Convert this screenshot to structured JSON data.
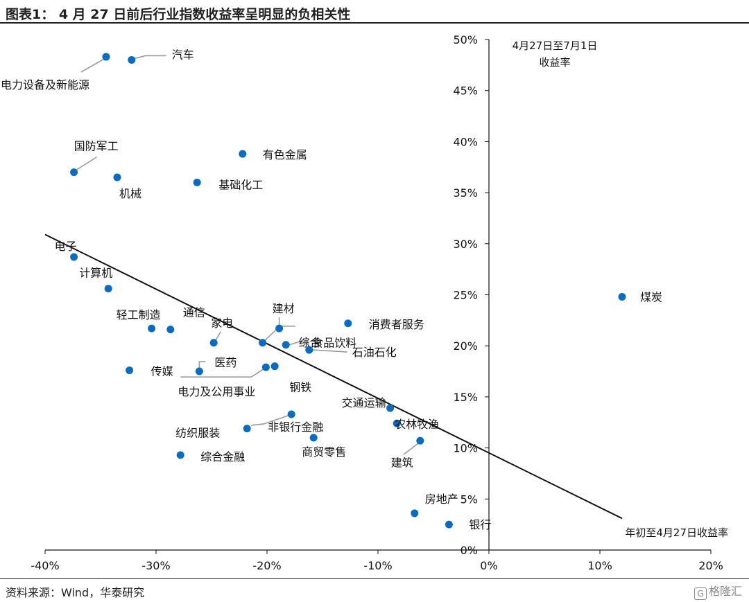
{
  "title": "图表1： 4 月 27 日前后行业指数收益率呈明显的负相关性",
  "source": "资料来源：Wind，华泰研究",
  "watermark": {
    "badge": "G",
    "text": "格隆汇"
  },
  "chart_data": {
    "type": "scatter",
    "title": "4月27日前后行业指数收益率呈明显的负相关性",
    "xlabel": "年初至4月27日收益率",
    "ylabel": [
      "4月27日至7月1日",
      "收益率"
    ],
    "xlim": [
      -0.4,
      0.2
    ],
    "ylim": [
      0.0,
      0.5
    ],
    "xticks": [
      -0.4,
      -0.3,
      -0.2,
      -0.1,
      0.0,
      0.1,
      0.2
    ],
    "xtick_labels": [
      "-40%",
      "-30%",
      "-20%",
      "-10%",
      "0%",
      "10%",
      "20%"
    ],
    "yticks": [
      0.0,
      0.05,
      0.1,
      0.15,
      0.2,
      0.25,
      0.3,
      0.35,
      0.4,
      0.45,
      0.5
    ],
    "ytick_labels": [
      "0%",
      "5%",
      "10%",
      "15%",
      "20%",
      "25%",
      "30%",
      "35%",
      "40%",
      "45%",
      "50%"
    ],
    "point_color": "#0a6cc1",
    "trendline": {
      "x": [
        -0.4,
        0.12
      ],
      "y": [
        0.309,
        0.031
      ]
    },
    "points": [
      {
        "name": "电力设备及新能源",
        "x": -0.345,
        "y": 0.483
      },
      {
        "name": "汽车",
        "x": -0.322,
        "y": 0.48
      },
      {
        "name": "国防军工",
        "x": -0.374,
        "y": 0.37
      },
      {
        "name": "机械",
        "x": -0.335,
        "y": 0.365
      },
      {
        "name": "基础化工",
        "x": -0.263,
        "y": 0.36
      },
      {
        "name": "有色金属",
        "x": -0.222,
        "y": 0.388
      },
      {
        "name": "电子",
        "x": -0.374,
        "y": 0.287
      },
      {
        "name": "计算机",
        "x": -0.343,
        "y": 0.256
      },
      {
        "name": "轻工制造",
        "x": -0.304,
        "y": 0.217
      },
      {
        "name": "通信",
        "x": -0.287,
        "y": 0.216
      },
      {
        "name": "传媒",
        "x": -0.324,
        "y": 0.176
      },
      {
        "name": "医药",
        "x": -0.261,
        "y": 0.175
      },
      {
        "name": "家电",
        "x": -0.248,
        "y": 0.203
      },
      {
        "name": "建材",
        "x": -0.189,
        "y": 0.217
      },
      {
        "name": "综合",
        "x": -0.204,
        "y": 0.203
      },
      {
        "name": "食品饮料",
        "x": -0.183,
        "y": 0.201
      },
      {
        "name": "石油石化",
        "x": -0.162,
        "y": 0.196
      },
      {
        "name": "电力及公用事业",
        "x": -0.201,
        "y": 0.179
      },
      {
        "name": "钢铁",
        "x": -0.193,
        "y": 0.18
      },
      {
        "name": "消费者服务",
        "x": -0.127,
        "y": 0.222
      },
      {
        "name": "交通运输",
        "x": -0.089,
        "y": 0.139
      },
      {
        "name": "农林牧渔",
        "x": -0.083,
        "y": 0.124
      },
      {
        "name": "纺织服装",
        "x": -0.218,
        "y": 0.119
      },
      {
        "name": "非银行金融",
        "x": -0.178,
        "y": 0.133
      },
      {
        "name": "商贸零售",
        "x": -0.158,
        "y": 0.11
      },
      {
        "name": "综合金融",
        "x": -0.278,
        "y": 0.093
      },
      {
        "name": "建筑",
        "x": -0.062,
        "y": 0.107
      },
      {
        "name": "房地产",
        "x": -0.067,
        "y": 0.036
      },
      {
        "name": "银行",
        "x": -0.036,
        "y": 0.025
      },
      {
        "name": "煤炭",
        "x": 0.12,
        "y": 0.248
      }
    ]
  }
}
